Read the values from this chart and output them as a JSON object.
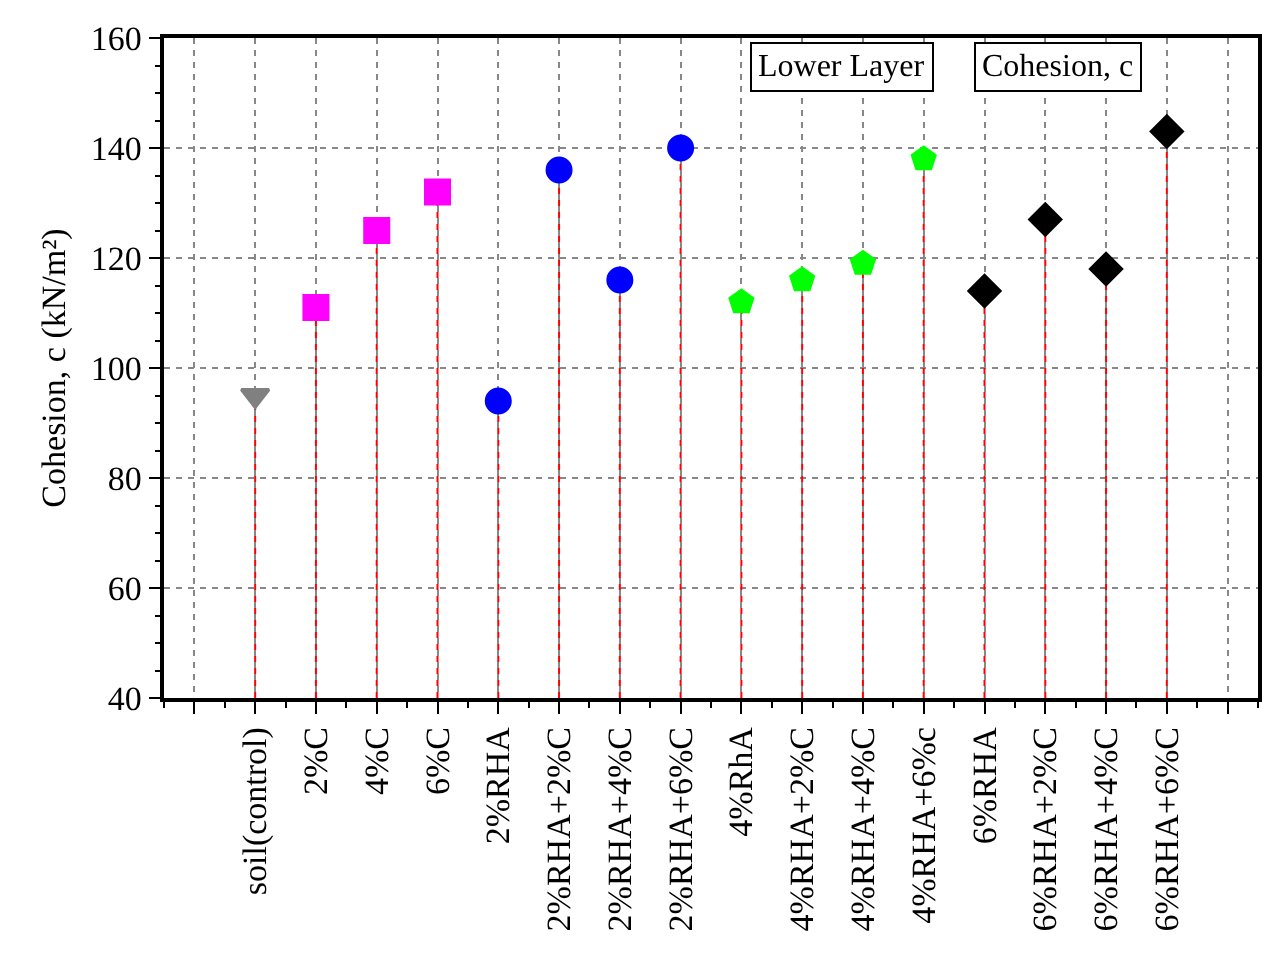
{
  "chart_data": {
    "type": "lollipop",
    "ylabel": "Cohesion, c (kN/m²)",
    "categories": [
      null,
      "soil(control)",
      "2%C",
      "4%C",
      "6%C",
      "2%RHA",
      "2%RHA+2%C",
      "2%RHA+4%C",
      "2%RHA+6%C",
      "4%RhA",
      "4%RHA+2%C",
      "4%RHA+4%C",
      "4%RHA+6%c",
      "6%RHA",
      "6%RHA+2%C",
      "6%RHA+4%C",
      "6%RHA+6%C",
      null
    ],
    "series": [
      {
        "color": "#808080",
        "marker": "triangle-down",
        "values": [
          null,
          95,
          null,
          null,
          null,
          null,
          null,
          null,
          null,
          null,
          null,
          null,
          null,
          null,
          null,
          null,
          null,
          null
        ]
      },
      {
        "color": "#ff00ff",
        "marker": "square",
        "values": [
          null,
          null,
          111,
          125,
          132,
          null,
          null,
          null,
          null,
          null,
          null,
          null,
          null,
          null,
          null,
          null,
          null,
          null
        ]
      },
      {
        "color": "#0000ff",
        "marker": "circle",
        "values": [
          null,
          null,
          null,
          null,
          null,
          94,
          136,
          116,
          140,
          null,
          null,
          null,
          null,
          null,
          null,
          null,
          null,
          null
        ]
      },
      {
        "color": "#00ff00",
        "values": [
          null,
          null,
          null,
          null,
          null,
          null,
          null,
          null,
          null,
          112,
          116,
          119,
          138,
          null,
          null,
          null,
          null,
          null
        ]
      },
      {
        "color": "#000000",
        "marker": "diamond",
        "values": [
          null,
          null,
          null,
          null,
          null,
          null,
          null,
          null,
          null,
          null,
          null,
          null,
          null,
          114,
          127,
          118,
          143,
          null
        ]
      }
    ],
    "ylim": [
      40,
      160
    ],
    "yticks": [
      40,
      60,
      80,
      100,
      120,
      140,
      160
    ],
    "grid": true,
    "annotations": [
      "Lower Layer",
      "Cohesion, c"
    ]
  }
}
